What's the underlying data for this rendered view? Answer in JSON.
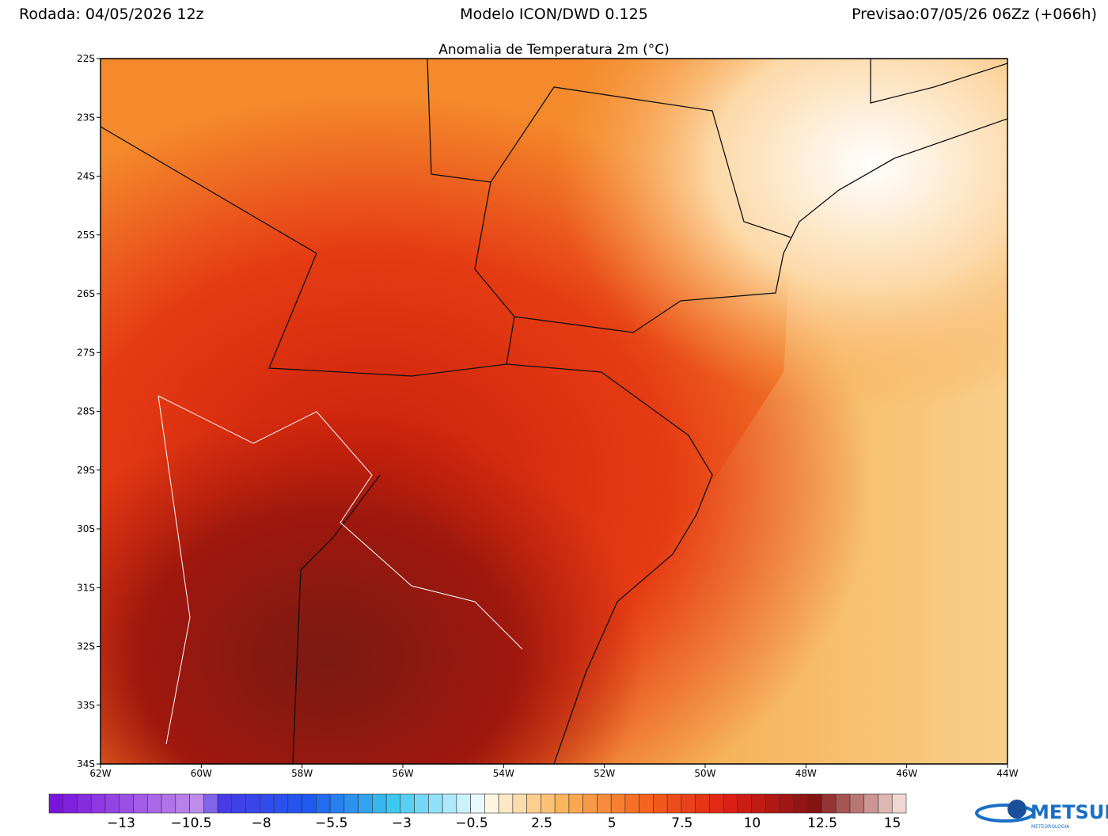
{
  "header": {
    "run": "Rodada: 04/05/2026 12z",
    "model": "Modelo ICON/DWD 0.125",
    "forecast": "Previsao:07/05/26 06Zz (+066h)"
  },
  "map": {
    "title": "Anomalia de Temperatura 2m (°C)",
    "lat_labels": [
      "22S",
      "23S",
      "24S",
      "25S",
      "26S",
      "27S",
      "28S",
      "29S",
      "30S",
      "31S",
      "32S",
      "33S",
      "34S"
    ],
    "lon_labels": [
      "62W",
      "60W",
      "58W",
      "56W",
      "54W",
      "52W",
      "50W",
      "48W",
      "46W",
      "44W"
    ]
  },
  "colorbar": {
    "labels": [
      "−13",
      "−10.5",
      "−8",
      "−5.5",
      "−3",
      "−0.5",
      "2.5",
      "5",
      "7.5",
      "10",
      "12.5",
      "15"
    ]
  },
  "logo": {
    "name": "METSUL",
    "tagline": "METEOROLOGIA"
  }
}
